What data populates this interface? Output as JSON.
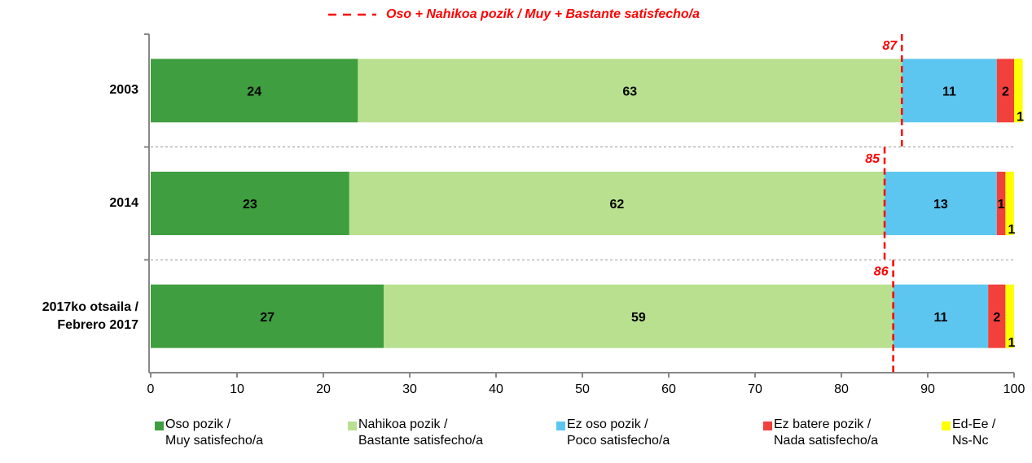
{
  "chart_data": {
    "type": "stacked_barh",
    "categories": [
      "2003",
      "2014",
      "2017ko otsaila /\nFebrero 2017"
    ],
    "series": [
      {
        "name": "Oso pozik /\nMuy satisfecho/a",
        "color": "#3f9e3f",
        "values": [
          24,
          23,
          27
        ]
      },
      {
        "name": "Nahikoa pozik /\nBastante satisfecho/a",
        "color": "#b8e08f",
        "values": [
          63,
          62,
          59
        ]
      },
      {
        "name": "Ez oso pozik /\nPoco satisfecho/a",
        "color": "#5cc6f0",
        "values": [
          11,
          13,
          11
        ]
      },
      {
        "name": "Ez batere pozik /\nNada satisfecho/a",
        "color": "#f2403c",
        "values": [
          2,
          1,
          2
        ]
      },
      {
        "name": "Ed-Ee /\nNs-Nc",
        "color": "#ffff00",
        "values": [
          1,
          1,
          1
        ]
      }
    ],
    "reference": {
      "name": "Oso + Nahikoa pozik / Muy + Bastante satisfecho/a",
      "color": "#ff0000",
      "values": [
        87,
        85,
        86
      ]
    },
    "xlim": [
      0,
      100
    ],
    "xticks": [
      0,
      10,
      20,
      30,
      40,
      50,
      60,
      70,
      80,
      90,
      100
    ],
    "legend": "bottom"
  }
}
